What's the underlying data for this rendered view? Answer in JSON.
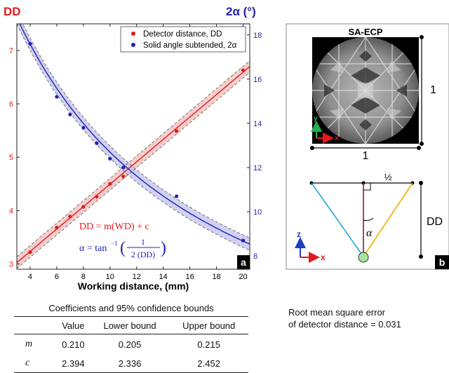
{
  "chart_data": [
    {
      "type": "line",
      "panel_label": "a",
      "xlabel": "Working distance, (mm)",
      "ylabel_left": "DD",
      "ylabel_right": "2α (°)",
      "xlim": [
        3,
        20.5
      ],
      "xticks": [
        4,
        6,
        8,
        10,
        12,
        14,
        16,
        18,
        20
      ],
      "ylim_left": [
        2.9,
        7.5
      ],
      "yticks_left": [
        3,
        4,
        5,
        6,
        7
      ],
      "ylim_right": [
        7.4,
        18.5
      ],
      "yticks_right": [
        8,
        10,
        12,
        14,
        16,
        18
      ],
      "legend_position": "top-right",
      "colors": {
        "dd": "#e31a1c",
        "alpha": "#1f1fb4",
        "dd_band": "#f4c6c6",
        "alpha_band": "#c9c9ee"
      },
      "series": [
        {
          "name": "Detector distance, DD",
          "axis": "left",
          "x": [
            4,
            6,
            7,
            8,
            9,
            10,
            11,
            15,
            20
          ],
          "y": [
            3.22,
            3.68,
            3.89,
            4.07,
            4.26,
            4.5,
            4.64,
            5.49,
            6.63
          ]
        },
        {
          "name": "Solid angle subtended, 2α",
          "axis": "right",
          "x": [
            4,
            6,
            7,
            8,
            9,
            10,
            11,
            15,
            20
          ],
          "y": [
            17.6,
            15.2,
            14.4,
            13.8,
            13.1,
            12.4,
            12.0,
            10.7,
            8.7
          ]
        }
      ],
      "equation_1": "DD = m(WD) + c",
      "equation_2_prefix": "α = tan",
      "equation_2_sup": "−1",
      "equation_2_num": "1",
      "equation_2_den": "2 (DD)"
    }
  ],
  "panel_b": {
    "label": "b",
    "ecp_title": "SA-ECP",
    "axis_y": "y",
    "axis_x": "x",
    "dim_bottom": "1",
    "dim_right": "1",
    "half_label": "½",
    "angle_label": "α",
    "dd_label": "DD",
    "axis_z": "z",
    "axis_x2": "x",
    "colors": {
      "left_ray": "#26a6d9",
      "right_ray": "#f0b400",
      "center_line": "#8a1a3a",
      "source": "#a6e39a"
    }
  },
  "coefficients": {
    "title": "Coefficients and 95% confidence bounds",
    "headers": [
      "",
      "Value",
      "Lower bound",
      "Upper bound"
    ],
    "rows": [
      {
        "symbol": "m",
        "value": "0.210",
        "lower": "0.205",
        "upper": "0.215"
      },
      {
        "symbol": "c",
        "value": "2.394",
        "lower": "2.336",
        "upper": "2.452"
      }
    ]
  },
  "rmse": {
    "line1": "Root mean square error",
    "line2": "of detector distance = 0.031"
  }
}
